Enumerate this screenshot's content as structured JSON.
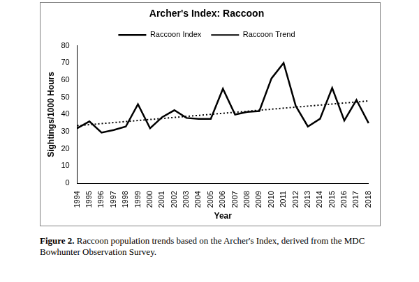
{
  "chart_data": {
    "type": "line",
    "title": "Archer's Index: Raccoon",
    "x_label": "Year",
    "y_label": "Sightings/1000 Hours",
    "categories": [
      "1994",
      "1995",
      "1996",
      "1997",
      "1998",
      "1999",
      "2000",
      "2001",
      "2002",
      "2003",
      "2004",
      "2005",
      "2006",
      "2007",
      "2008",
      "2009",
      "2010",
      "2011",
      "2012",
      "2013",
      "2014",
      "2015",
      "2016",
      "2017",
      "2018"
    ],
    "series": [
      {
        "name": "Raccoon Index",
        "color": "#000000",
        "line_style": "solid",
        "marker": "none",
        "values": [
          32,
          36,
          29.5,
          31,
          33,
          46,
          32,
          38.5,
          42.5,
          38,
          37.5,
          37.5,
          55,
          40,
          41.5,
          42,
          61,
          70,
          45,
          33,
          37.5,
          55.5,
          36.5,
          48.5,
          35
        ]
      },
      {
        "name": "Raccoon Trend",
        "color": "#000000",
        "line_style": "dotted",
        "marker": "none",
        "values": [
          33.5,
          34.1,
          34.7,
          35.3,
          35.9,
          36.5,
          37.1,
          37.7,
          38.3,
          38.9,
          39.5,
          40.1,
          40.7,
          41.3,
          41.9,
          42.5,
          43.1,
          43.7,
          44.3,
          44.9,
          45.5,
          46.1,
          46.7,
          47.3,
          47.9
        ]
      }
    ],
    "ylim": [
      0,
      80
    ],
    "yticks": [
      0,
      10,
      20,
      30,
      40,
      50,
      60,
      70,
      80
    ],
    "grid": false,
    "legend": "top"
  },
  "caption": {
    "label": "Figure 2.",
    "text": "Raccoon population trends based on the Archer's Index, derived from the MDC Bowhunter Observation Survey."
  }
}
